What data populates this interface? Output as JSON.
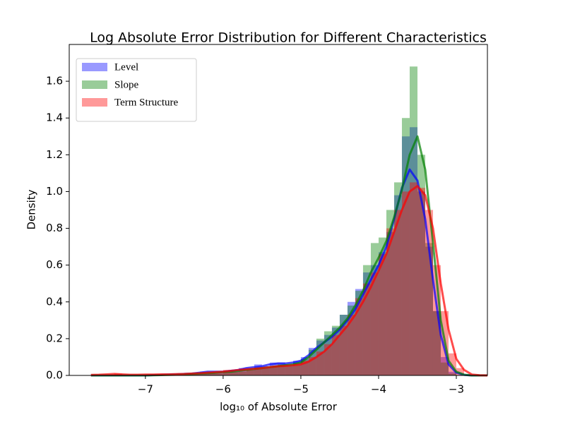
{
  "chart_data": {
    "type": "histogram",
    "title": "Log Absolute Error Distribution for Different Characteristics",
    "xlabel": "log₁₀ of Absolute Error",
    "ylabel": "Density",
    "xlim": [
      -7.98,
      -2.6
    ],
    "ylim": [
      0,
      1.8
    ],
    "xticks": [
      {
        "value": -7,
        "label": "−7"
      },
      {
        "value": -6,
        "label": "−6"
      },
      {
        "value": -5,
        "label": "−5"
      },
      {
        "value": -4,
        "label": "−4"
      },
      {
        "value": -3,
        "label": "−3"
      }
    ],
    "yticks": [
      {
        "value": 0,
        "label": "0.0"
      },
      {
        "value": 0.2,
        "label": "0.2"
      },
      {
        "value": 0.4,
        "label": "0.4"
      },
      {
        "value": 0.6,
        "label": "0.6"
      },
      {
        "value": 0.8,
        "label": "0.8"
      },
      {
        "value": 1.0,
        "label": "1.0"
      },
      {
        "value": 1.2,
        "label": "1.2"
      },
      {
        "value": 1.4,
        "label": "1.4"
      },
      {
        "value": 1.6,
        "label": "1.6"
      }
    ],
    "legend": "upper left",
    "grid": false,
    "bins": [
      -7.7,
      -7.6,
      -7.5,
      -7.4,
      -7.3,
      -7.2,
      -7.1,
      -7.0,
      -6.9,
      -6.8,
      -6.7,
      -6.6,
      -6.5,
      -6.4,
      -6.3,
      -6.2,
      -6.1,
      -6.0,
      -5.9,
      -5.8,
      -5.7,
      -5.6,
      -5.5,
      -5.4,
      -5.3,
      -5.2,
      -5.1,
      -5.0,
      -4.9,
      -4.8,
      -4.7,
      -4.6,
      -4.5,
      -4.4,
      -4.3,
      -4.2,
      -4.1,
      -4.0,
      -3.9,
      -3.8,
      -3.7,
      -3.6,
      -3.5,
      -3.4,
      -3.3,
      -3.2,
      -3.1,
      -3.0,
      -2.9
    ],
    "kde_x": [
      -7.7,
      -7.6,
      -7.5,
      -7.4,
      -7.3,
      -7.2,
      -7.1,
      -7.0,
      -6.9,
      -6.8,
      -6.7,
      -6.6,
      -6.5,
      -6.4,
      -6.3,
      -6.2,
      -6.1,
      -6.0,
      -5.9,
      -5.8,
      -5.7,
      -5.6,
      -5.5,
      -5.4,
      -5.3,
      -5.2,
      -5.1,
      -5.0,
      -4.9,
      -4.8,
      -4.7,
      -4.6,
      -4.5,
      -4.4,
      -4.3,
      -4.2,
      -4.1,
      -4.0,
      -3.9,
      -3.8,
      -3.7,
      -3.6,
      -3.5,
      -3.4,
      -3.3,
      -3.2,
      -3.1,
      -3.0,
      -2.9,
      -2.8,
      -2.7,
      -2.6
    ],
    "series": [
      {
        "name": "Level",
        "color": "#0000ff",
        "values": [
          0,
          0,
          0,
          0,
          0,
          0,
          0,
          0,
          0,
          0,
          0,
          0.005,
          0.005,
          0.01,
          0.02,
          0.015,
          0.02,
          0.02,
          0.03,
          0.04,
          0.04,
          0.06,
          0.05,
          0.07,
          0.07,
          0.06,
          0.08,
          0.1,
          0.15,
          0.19,
          0.22,
          0.26,
          0.33,
          0.4,
          0.47,
          0.56,
          0.6,
          0.67,
          0.78,
          0.98,
          1.3,
          1.35,
          1.0,
          0.7,
          0.35,
          0.1,
          0.02,
          0
        ],
        "kde": [
          0,
          0,
          0,
          0,
          0,
          0,
          0,
          0,
          0.002,
          0.003,
          0.005,
          0.006,
          0.008,
          0.01,
          0.015,
          0.02,
          0.02,
          0.02,
          0.025,
          0.03,
          0.04,
          0.045,
          0.05,
          0.06,
          0.065,
          0.065,
          0.07,
          0.08,
          0.11,
          0.15,
          0.18,
          0.21,
          0.25,
          0.3,
          0.36,
          0.44,
          0.52,
          0.6,
          0.7,
          0.85,
          1.02,
          1.12,
          1.06,
          0.85,
          0.52,
          0.22,
          0.06,
          0.015,
          0.003,
          0,
          0,
          0
        ]
      },
      {
        "name": "Slope",
        "color": "#008000",
        "values": [
          0,
          0,
          0,
          0,
          0,
          0,
          0,
          0,
          0,
          0,
          0,
          0,
          0.005,
          0.01,
          0.01,
          0.015,
          0.01,
          0.02,
          0.02,
          0.02,
          0.03,
          0.04,
          0.04,
          0.05,
          0.06,
          0.06,
          0.07,
          0.09,
          0.14,
          0.2,
          0.24,
          0.27,
          0.33,
          0.38,
          0.46,
          0.6,
          0.72,
          0.75,
          0.9,
          1.05,
          1.4,
          1.68,
          1.2,
          0.72,
          0.35,
          0.07,
          0.01,
          0
        ],
        "kde": [
          0,
          0,
          0,
          0,
          0,
          0,
          0,
          0,
          0.001,
          0.002,
          0.003,
          0.004,
          0.006,
          0.008,
          0.01,
          0.012,
          0.015,
          0.018,
          0.02,
          0.025,
          0.03,
          0.035,
          0.04,
          0.045,
          0.05,
          0.055,
          0.06,
          0.07,
          0.1,
          0.14,
          0.18,
          0.22,
          0.26,
          0.31,
          0.38,
          0.46,
          0.56,
          0.64,
          0.73,
          0.86,
          1.01,
          1.2,
          1.3,
          1.12,
          0.72,
          0.3,
          0.08,
          0.02,
          0.004,
          0,
          0,
          0
        ]
      },
      {
        "name": "Term Structure",
        "color": "#ff0000",
        "values": [
          0,
          0,
          0,
          0.01,
          0,
          0,
          0,
          0.005,
          0,
          0.005,
          0.005,
          0.005,
          0.01,
          0.01,
          0.015,
          0.02,
          0.02,
          0.03,
          0.02,
          0.03,
          0.03,
          0.04,
          0.04,
          0.05,
          0.05,
          0.05,
          0.06,
          0.08,
          0.1,
          0.13,
          0.17,
          0.22,
          0.27,
          0.33,
          0.42,
          0.5,
          0.56,
          0.66,
          0.8,
          0.9,
          1.0,
          1.05,
          1.02,
          0.9,
          0.6,
          0.35,
          0.12,
          0.04
        ],
        "kde": [
          0.003,
          0.004,
          0.006,
          0.008,
          0.006,
          0.004,
          0.004,
          0.005,
          0.005,
          0.006,
          0.006,
          0.007,
          0.008,
          0.01,
          0.012,
          0.015,
          0.018,
          0.02,
          0.025,
          0.03,
          0.033,
          0.036,
          0.04,
          0.045,
          0.05,
          0.052,
          0.055,
          0.06,
          0.075,
          0.1,
          0.13,
          0.17,
          0.22,
          0.27,
          0.33,
          0.4,
          0.48,
          0.57,
          0.66,
          0.78,
          0.9,
          1.0,
          1.03,
          0.98,
          0.8,
          0.5,
          0.25,
          0.09,
          0.03,
          0.005,
          0.001,
          0
        ]
      }
    ]
  }
}
